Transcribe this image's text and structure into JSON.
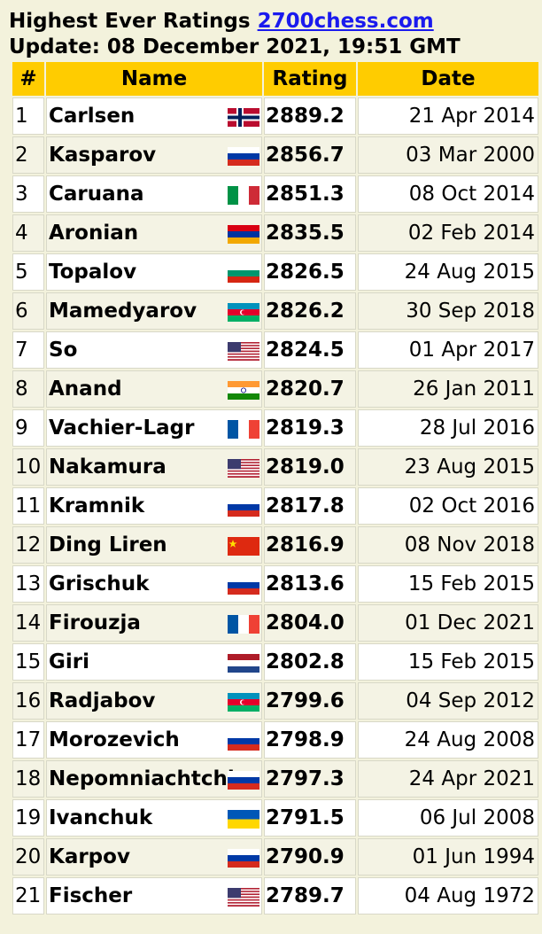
{
  "header": {
    "title": "Highest Ever Ratings",
    "site_link": "2700chess.com",
    "update": "Update: 08 December 2021, 19:51 GMT"
  },
  "table": {
    "columns": [
      "#",
      "Name",
      "Rating",
      "Date"
    ],
    "rows": [
      {
        "rank": "1",
        "name": "Carlsen",
        "flag": "norway-flag-icon",
        "rating": "2889.2",
        "date": "21 Apr 2014"
      },
      {
        "rank": "2",
        "name": "Kasparov",
        "flag": "russia-flag-icon",
        "rating": "2856.7",
        "date": "03 Mar 2000"
      },
      {
        "rank": "3",
        "name": "Caruana",
        "flag": "italy-flag-icon",
        "rating": "2851.3",
        "date": "08 Oct 2014"
      },
      {
        "rank": "4",
        "name": "Aronian",
        "flag": "armenia-flag-icon",
        "rating": "2835.5",
        "date": "02 Feb 2014"
      },
      {
        "rank": "5",
        "name": "Topalov",
        "flag": "bulgaria-flag-icon",
        "rating": "2826.5",
        "date": "24 Aug 2015"
      },
      {
        "rank": "6",
        "name": "Mamedyarov",
        "flag": "azerbaijan-flag-icon",
        "rating": "2826.2",
        "date": "30 Sep 2018"
      },
      {
        "rank": "7",
        "name": "So",
        "flag": "usa-flag-icon",
        "rating": "2824.5",
        "date": "01 Apr 2017"
      },
      {
        "rank": "8",
        "name": "Anand",
        "flag": "india-flag-icon",
        "rating": "2820.7",
        "date": "26 Jan 2011"
      },
      {
        "rank": "9",
        "name": "Vachier-Lagr",
        "flag": "france-flag-icon",
        "rating": "2819.3",
        "date": "28 Jul 2016"
      },
      {
        "rank": "10",
        "name": "Nakamura",
        "flag": "usa-flag-icon",
        "rating": "2819.0",
        "date": "23 Aug 2015"
      },
      {
        "rank": "11",
        "name": "Kramnik",
        "flag": "russia-flag-icon",
        "rating": "2817.8",
        "date": "02 Oct 2016"
      },
      {
        "rank": "12",
        "name": "Ding Liren",
        "flag": "china-flag-icon",
        "rating": "2816.9",
        "date": "08 Nov 2018"
      },
      {
        "rank": "13",
        "name": "Grischuk",
        "flag": "russia-flag-icon",
        "rating": "2813.6",
        "date": "15 Feb 2015"
      },
      {
        "rank": "14",
        "name": "Firouzja",
        "flag": "france-flag-icon",
        "rating": "2804.0",
        "date": "01 Dec 2021"
      },
      {
        "rank": "15",
        "name": "Giri",
        "flag": "netherlands-flag-icon",
        "rating": "2802.8",
        "date": "15 Feb 2015"
      },
      {
        "rank": "16",
        "name": "Radjabov",
        "flag": "azerbaijan-flag-icon",
        "rating": "2799.6",
        "date": "04 Sep 2012"
      },
      {
        "rank": "17",
        "name": "Morozevich",
        "flag": "russia-flag-icon",
        "rating": "2798.9",
        "date": "24 Aug 2008"
      },
      {
        "rank": "18",
        "name": "Nepomniachtchi",
        "flag": "russia-flag-icon",
        "rating": "2797.3",
        "date": "24 Apr 2021"
      },
      {
        "rank": "19",
        "name": "Ivanchuk",
        "flag": "ukraine-flag-icon",
        "rating": "2791.5",
        "date": "06 Jul 2008"
      },
      {
        "rank": "20",
        "name": "Karpov",
        "flag": "russia-flag-icon",
        "rating": "2790.9",
        "date": "01 Jun 1994"
      },
      {
        "rank": "21",
        "name": "Fischer",
        "flag": "usa-flag-icon",
        "rating": "2789.7",
        "date": "04 Aug 1972"
      }
    ]
  },
  "colors": {
    "background": "#f3f2dc",
    "header_fill": "#ffcc00",
    "link": "#1a1aee"
  }
}
